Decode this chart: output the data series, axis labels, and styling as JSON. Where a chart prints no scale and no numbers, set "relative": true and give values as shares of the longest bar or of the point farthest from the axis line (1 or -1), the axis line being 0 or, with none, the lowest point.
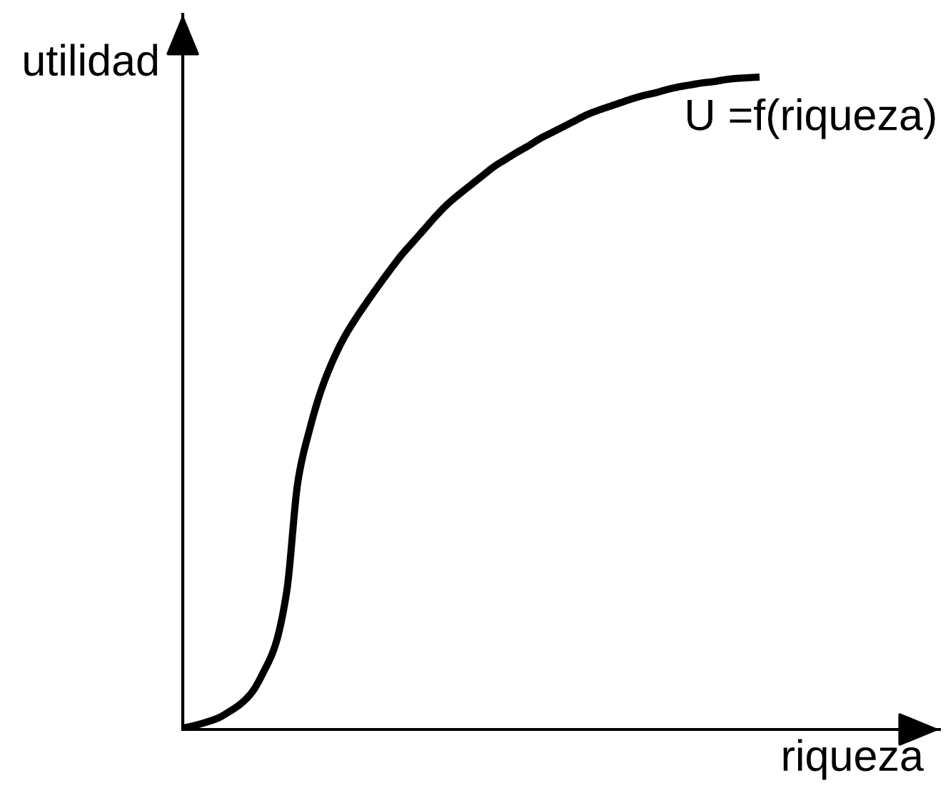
{
  "chart_data": {
    "type": "line",
    "relative": true,
    "xlabel": "riqueza",
    "ylabel": "utilidad",
    "annotations": [
      "U =f(riqueza)"
    ],
    "line_style": "solid",
    "categories": [
      null,
      null,
      null,
      null,
      null,
      null,
      null,
      null,
      null,
      null,
      null,
      null,
      null,
      null,
      null,
      null,
      null,
      null,
      null,
      null,
      null,
      null,
      null,
      null,
      null,
      null,
      null,
      null,
      null,
      null,
      null,
      null,
      null,
      null,
      null,
      null,
      null,
      null,
      null,
      null,
      null,
      null,
      null,
      null,
      null,
      null,
      null,
      null,
      null,
      null,
      null
    ],
    "series": [
      {
        "color": "#000000",
        "values": [
          0.002,
          0.006,
          0.011,
          0.017,
          0.027,
          0.039,
          0.057,
          0.088,
          0.128,
          0.21,
          0.382,
          0.46,
          0.52,
          0.565,
          0.601,
          0.63,
          0.656,
          0.681,
          0.705,
          0.728,
          0.748,
          0.768,
          0.788,
          0.806,
          0.821,
          0.835,
          0.849,
          0.863,
          0.874,
          0.885,
          0.895,
          0.906,
          0.915,
          0.924,
          0.933,
          0.942,
          0.949,
          0.955,
          0.961,
          0.967,
          0.972,
          0.976,
          0.981,
          0.985,
          0.988,
          0.991,
          0.993,
          0.996,
          0.998,
          0.999,
          1.0
        ]
      }
    ]
  }
}
